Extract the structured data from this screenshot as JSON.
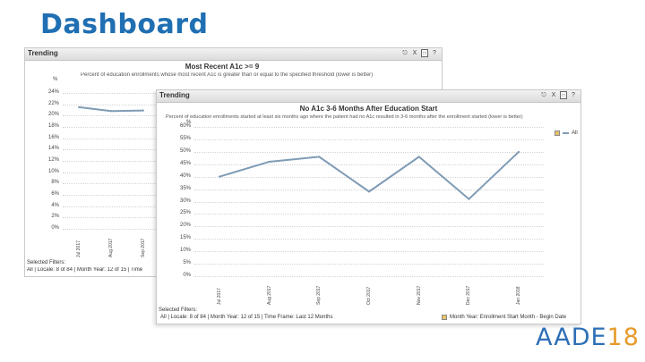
{
  "slide": {
    "title": "Dashboard",
    "brand_text": "AADE",
    "brand_year": "18"
  },
  "back_panel": {
    "label": "Trending",
    "tools": [
      "X",
      "?"
    ],
    "title": "Most Recent A1c >= 9",
    "subtitle": "Percent of education enrollments whose most recent A1c is greater than or equal to the specified threshold (lower is better)",
    "unit": "%",
    "yticks": [
      "24%",
      "22%",
      "20%",
      "18%",
      "16%",
      "14%",
      "12%",
      "10%",
      "8%",
      "6%",
      "4%",
      "2%",
      "0%"
    ],
    "xticks": [
      "Jul 2017",
      "Aug 2017",
      "Sep 2017"
    ],
    "footer_label": "Selected Filters:",
    "footer_text": "All | Locale: 8 of 84 | Month Year: 12 of 15 | Time"
  },
  "front_panel": {
    "label": "Trending",
    "tools": [
      "X",
      "?"
    ],
    "title": "No A1c 3-6 Months After Education Start",
    "subtitle": "Percent of education enrollments started at least six months ago where the patient had no A1c resulted in 3-6 months after the enrollment started (lower is better)",
    "unit": "%",
    "yticks": [
      "60%",
      "55%",
      "50%",
      "45%",
      "40%",
      "35%",
      "30%",
      "25%",
      "20%",
      "15%",
      "10%",
      "5%",
      "0%"
    ],
    "xticks": [
      "Jul 2017",
      "Aug 2017",
      "Sep 2017",
      "Oct 2017",
      "Nov 2017",
      "Dec 2017",
      "Jan 2018"
    ],
    "legend_all": "All",
    "footer_label": "Selected Filters:",
    "footer_text": "All | Locale: 8 of 84 | Month Year: 12 of 15 | Time Frame: Last 12 Months",
    "footer_legend": "Month Year: Enrollment Start Month - Begin Date"
  },
  "chart_data": [
    {
      "type": "line",
      "title": "Most Recent A1c >= 9",
      "ylabel": "%",
      "ylim": [
        0,
        24
      ],
      "categories": [
        "Jul 2017",
        "Aug 2017",
        "Sep 2017"
      ],
      "series": [
        {
          "values": [
            21.5,
            20.8,
            20.9
          ]
        }
      ]
    },
    {
      "type": "line",
      "title": "No A1c 3-6 Months After Education Start",
      "ylabel": "%",
      "ylim": [
        0,
        60
      ],
      "categories": [
        "Jul 2017",
        "Aug 2017",
        "Sep 2017",
        "Oct 2017",
        "Nov 2017",
        "Dec 2017",
        "Jan 2018"
      ],
      "series": [
        {
          "name": "All",
          "values": [
            40,
            46,
            48,
            34,
            48,
            31,
            50
          ]
        }
      ]
    }
  ],
  "colors": {
    "line": "#7f9bb5",
    "title": "#1f6fb2",
    "brand_accent": "#e69b2b"
  }
}
